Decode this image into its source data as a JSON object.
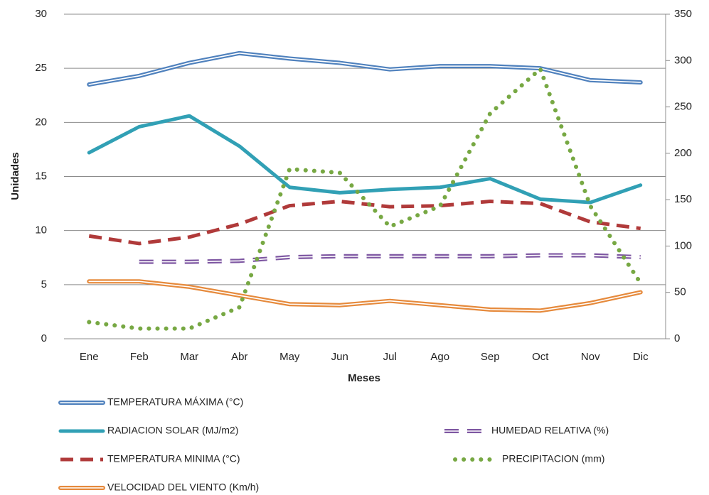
{
  "chart_data": {
    "type": "line",
    "x_label": "Meses",
    "y_label": "Unidades",
    "categories": [
      "Ene",
      "Feb",
      "Mar",
      "Abr",
      "May",
      "Jun",
      "Jul",
      "Ago",
      "Sep",
      "Oct",
      "Nov",
      "Dic"
    ],
    "ylim": [
      0,
      30
    ],
    "yticks": [
      0,
      5,
      10,
      15,
      20,
      25,
      30
    ],
    "y2lim": [
      0,
      350
    ],
    "y2ticks": [
      0,
      50,
      100,
      150,
      200,
      250,
      300,
      350
    ],
    "grid": true,
    "series": [
      {
        "name": "TEMPERATURA MÁXIMA (°C)",
        "color": "#4f81bd",
        "style": "double",
        "values": [
          23.5,
          24.3,
          25.5,
          26.4,
          25.9,
          25.5,
          24.9,
          25.2,
          25.2,
          25.0,
          23.9,
          23.7
        ]
      },
      {
        "name": "RADIACION SOLAR (MJ/m2)",
        "color": "#31a0b5",
        "style": "solid",
        "values": [
          17.2,
          19.6,
          20.6,
          17.8,
          14.0,
          13.5,
          13.8,
          14.0,
          14.8,
          12.9,
          12.6,
          14.2
        ]
      },
      {
        "name": "TEMPERATURA MINIMA (°C)",
        "color": "#b03a3a",
        "style": "dashed",
        "values": [
          9.5,
          8.8,
          9.4,
          10.6,
          12.3,
          12.7,
          12.2,
          12.3,
          12.7,
          12.5,
          10.8,
          10.2
        ]
      },
      {
        "name": "VELOCIDAD DEL VIENTO (Km/h)",
        "color": "#e68a3c",
        "style": "double",
        "values": [
          5.3,
          5.3,
          4.8,
          4.0,
          3.2,
          3.1,
          3.5,
          3.1,
          2.7,
          2.6,
          3.3,
          4.3
        ]
      },
      {
        "name": "HUMEDAD RELATIVA (%)",
        "color": "#7e57a2",
        "style": "double-dashed",
        "axis": "y2",
        "values": [
          null,
          83,
          83,
          84,
          88,
          89,
          89,
          89,
          89,
          90,
          90,
          88
        ]
      },
      {
        "name": "PRECIPITACION (mm)",
        "color": "#77a843",
        "style": "dotted",
        "axis": "y2",
        "values": [
          18,
          11,
          11,
          34,
          183,
          179,
          121,
          143,
          243,
          291,
          143,
          60
        ]
      }
    ]
  }
}
